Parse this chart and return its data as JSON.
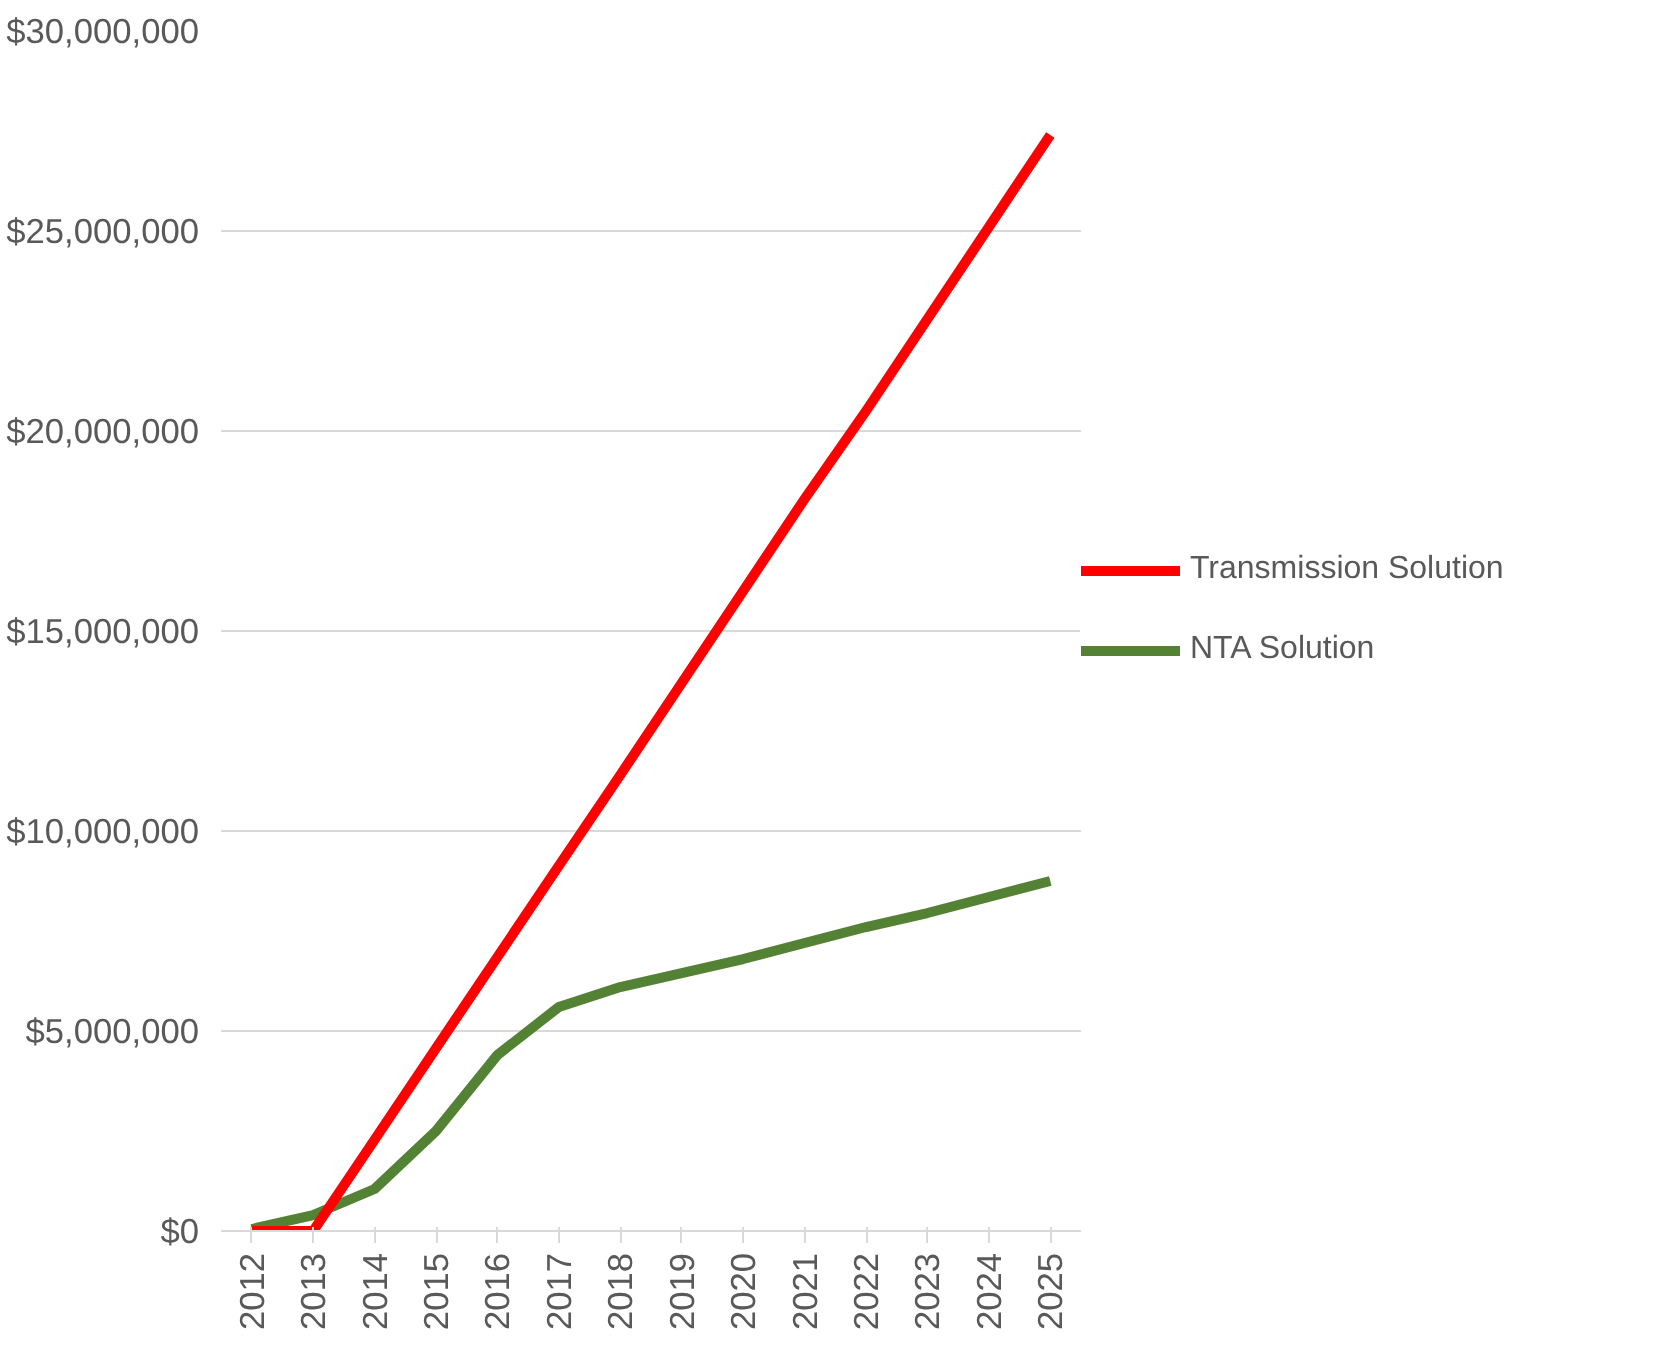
{
  "chart_data": {
    "type": "line",
    "categories": [
      "2012",
      "2013",
      "2014",
      "2015",
      "2016",
      "2017",
      "2018",
      "2019",
      "2020",
      "2021",
      "2022",
      "2023",
      "2024",
      "2025"
    ],
    "series": [
      {
        "name": "Transmission Solution",
        "color": "#ff0000",
        "values": [
          0,
          0,
          2280000.0,
          4570000.0,
          6850000.0,
          9130000.0,
          11400000.0,
          13700000.0,
          16000000.0,
          18300000.0,
          20500000.0,
          22800000.0,
          25100000.0,
          27400000.0
        ]
      },
      {
        "name": "NTA Solution",
        "color": "#548235",
        "values": [
          50000.0,
          400000.0,
          1050000.0,
          2500000.0,
          4400000.0,
          5600000.0,
          6100000.0,
          6450000.0,
          6800000.0,
          7200000.0,
          7600000.0,
          7950000.0,
          8350000.0,
          8750000.0
        ]
      }
    ],
    "ylim": [
      0,
      30000000
    ],
    "yticks": [
      {
        "value": 0,
        "label": "$0"
      },
      {
        "value": 5000000,
        "label": "$5,000,000"
      },
      {
        "value": 10000000,
        "label": "$10,000,000"
      },
      {
        "value": 15000000,
        "label": "$15,000,000"
      },
      {
        "value": 20000000,
        "label": "$20,000,000"
      },
      {
        "value": 25000000,
        "label": "$25,000,000"
      },
      {
        "value": 30000000,
        "label": "$30,000,000"
      }
    ],
    "grid": "y",
    "legend": "right",
    "marker": "none",
    "line_style": "solid"
  }
}
